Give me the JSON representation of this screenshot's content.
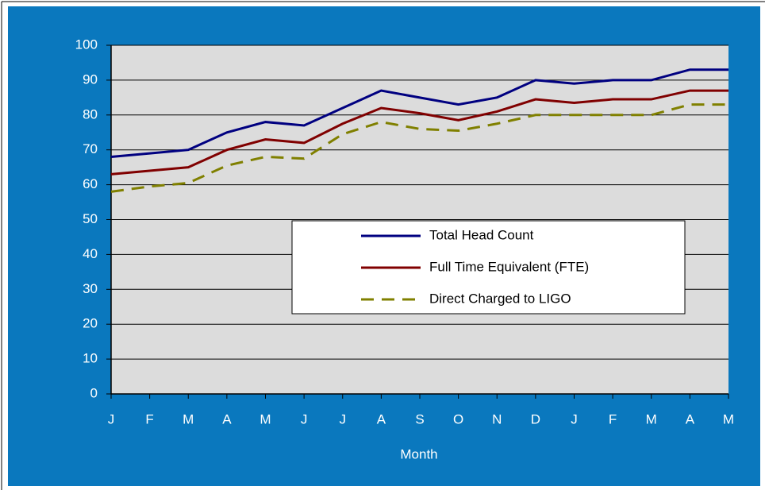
{
  "chart_data": {
    "type": "line",
    "x_label": "Month",
    "categories": [
      "J",
      "F",
      "M",
      "A",
      "M",
      "J",
      "J",
      "A",
      "S",
      "O",
      "N",
      "D",
      "J",
      "F",
      "M",
      "A",
      "M"
    ],
    "series": [
      {
        "name": "Total Head Count",
        "color": "#000080",
        "dashed": false,
        "values": [
          68,
          69,
          70,
          75,
          78,
          77,
          82,
          87,
          85,
          83,
          85,
          90,
          89,
          90,
          90,
          93,
          93
        ]
      },
      {
        "name": "Full Time Equivalent (FTE)",
        "color": "#800000",
        "dashed": false,
        "values": [
          63,
          64,
          65,
          70,
          73,
          72,
          77.5,
          82,
          80.5,
          78.5,
          81,
          84.5,
          83.5,
          84.5,
          84.5,
          87,
          87
        ]
      },
      {
        "name": "Direct Charged to LIGO",
        "color": "#808000",
        "dashed": true,
        "values": [
          58,
          59.5,
          60.5,
          65.5,
          68,
          67.5,
          74.5,
          78,
          76,
          75.5,
          77.5,
          80,
          80,
          80,
          80,
          83,
          83
        ]
      }
    ],
    "ylim": [
      0,
      100
    ],
    "yticks": [
      0,
      10,
      20,
      30,
      40,
      50,
      60,
      70,
      80,
      90,
      100
    ],
    "grid": true
  }
}
